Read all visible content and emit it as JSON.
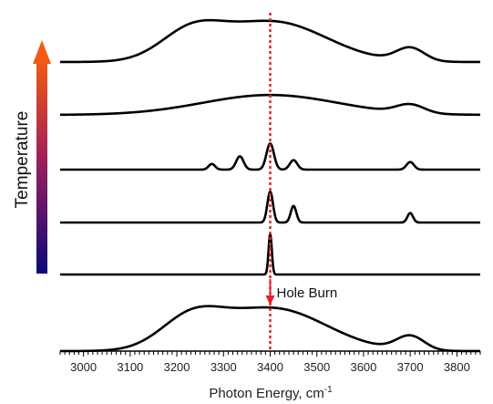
{
  "chart_data": {
    "type": "line",
    "xlabel": "Photon Energy, cm",
    "xlabel_superscript": "-1",
    "xlim": [
      2950,
      3850
    ],
    "x_ticks": [
      3000,
      3100,
      3200,
      3300,
      3400,
      3500,
      3600,
      3700,
      3800
    ],
    "grid": false,
    "legend": "none",
    "temperature_label": "Temperature",
    "annotation": {
      "text": "Hole Burn",
      "x": 3400,
      "color": "#e8202a"
    },
    "reference_line": {
      "x": 3400,
      "style": "dotted",
      "color": "#e8202a"
    },
    "stacked_traces": [
      {
        "peaks": [
          [
            3230,
            0.55,
            65
          ],
          [
            3405,
            0.85,
            115
          ],
          [
            3700,
            0.28,
            30
          ]
        ]
      },
      {
        "peaks": [
          [
            3400,
            0.42,
            145
          ],
          [
            3700,
            0.18,
            30
          ]
        ]
      },
      {
        "peaks": [
          [
            3275,
            0.12,
            7
          ],
          [
            3335,
            0.28,
            8
          ],
          [
            3400,
            0.55,
            8
          ],
          [
            3450,
            0.2,
            8
          ],
          [
            3700,
            0.16,
            8
          ]
        ]
      },
      {
        "peaks": [
          [
            3400,
            0.65,
            6
          ],
          [
            3450,
            0.35,
            6
          ],
          [
            3700,
            0.2,
            6
          ]
        ]
      },
      {
        "peaks": [
          [
            3400,
            0.85,
            3.5
          ]
        ]
      },
      {
        "peaks": [
          [
            3230,
            0.6,
            65
          ],
          [
            3405,
            0.9,
            115
          ],
          [
            3700,
            0.3,
            30
          ]
        ]
      }
    ]
  },
  "colors": {
    "trace": "#000000",
    "arrow_bottom": "#0a0a78",
    "arrow_mid": "#a0205a",
    "arrow_top": "#f05a14"
  }
}
